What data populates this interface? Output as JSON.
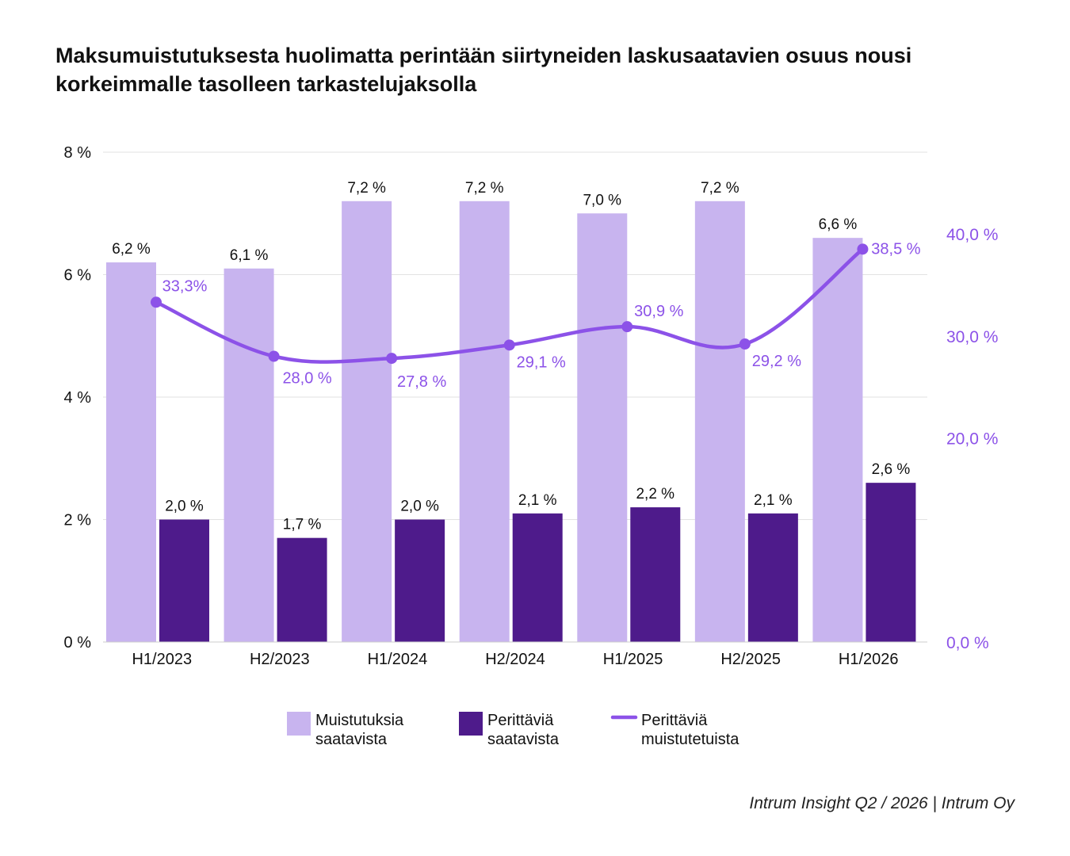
{
  "title": "Maksumuistutuksesta huolimatta perintään siirtyneiden laskusaatavien osuus nousi korkeimmalle tasolleen tarkastelujaksolla",
  "source": "Intrum Insight Q2 / 2026 | Intrum Oy",
  "chart_data": {
    "type": "bar",
    "categories": [
      "H1/2023",
      "H2/2023",
      "H1/2024",
      "H2/2024",
      "H1/2025",
      "H2/2025",
      "H1/2026"
    ],
    "y_left": {
      "ticks": [
        "0 %",
        "2 %",
        "4 %",
        "6 %",
        "8 %"
      ],
      "range": [
        0,
        8
      ]
    },
    "y_right": {
      "ticks": [
        "0,0 %",
        "20,0 %",
        "30,0 %",
        "40,0 %"
      ],
      "tick_values": [
        0,
        20,
        30,
        40
      ],
      "range": [
        0,
        48
      ]
    },
    "grid": true,
    "legend_position": "bottom",
    "series": [
      {
        "name": "Muistutuksia saatavista",
        "axis": "left",
        "kind": "bar",
        "color": "#c8b4ef",
        "values": [
          6.2,
          6.1,
          7.2,
          7.2,
          7.0,
          7.2,
          6.6
        ],
        "labels": [
          "6,2 %",
          "6,1 %",
          "7,2 %",
          "7,2 %",
          "7,0 %",
          "7,2 %",
          "6,6 %"
        ]
      },
      {
        "name": "Perittäviä saatavista",
        "axis": "left",
        "kind": "bar",
        "color": "#4e1b8b",
        "values": [
          2.0,
          1.7,
          2.0,
          2.1,
          2.2,
          2.1,
          2.6
        ],
        "labels": [
          "2,0 %",
          "1,7 %",
          "2,0 %",
          "2,1 %",
          "2,2 %",
          "2,1 %",
          "2,6 %"
        ]
      },
      {
        "name": "Perittäviä muistutetuista",
        "axis": "right",
        "kind": "line",
        "color": "#8c52e8",
        "values": [
          33.3,
          28.0,
          27.8,
          29.1,
          30.9,
          29.2,
          38.5
        ],
        "labels": [
          "33,3%",
          "28,0 %",
          "27,8 %",
          "29,1 %",
          "30,9 %",
          "29,2 %",
          "38,5 %"
        ]
      }
    ],
    "legend": [
      {
        "line1": "Muistutuksia",
        "line2": "saatavista",
        "symbol": "square",
        "color": "#c8b4ef"
      },
      {
        "line1": "Perittäviä",
        "line2": "saatavista",
        "symbol": "square",
        "color": "#4e1b8b"
      },
      {
        "line1": "Perittäviä",
        "line2": "muistutetuista",
        "symbol": "line",
        "color": "#8c52e8"
      }
    ]
  }
}
